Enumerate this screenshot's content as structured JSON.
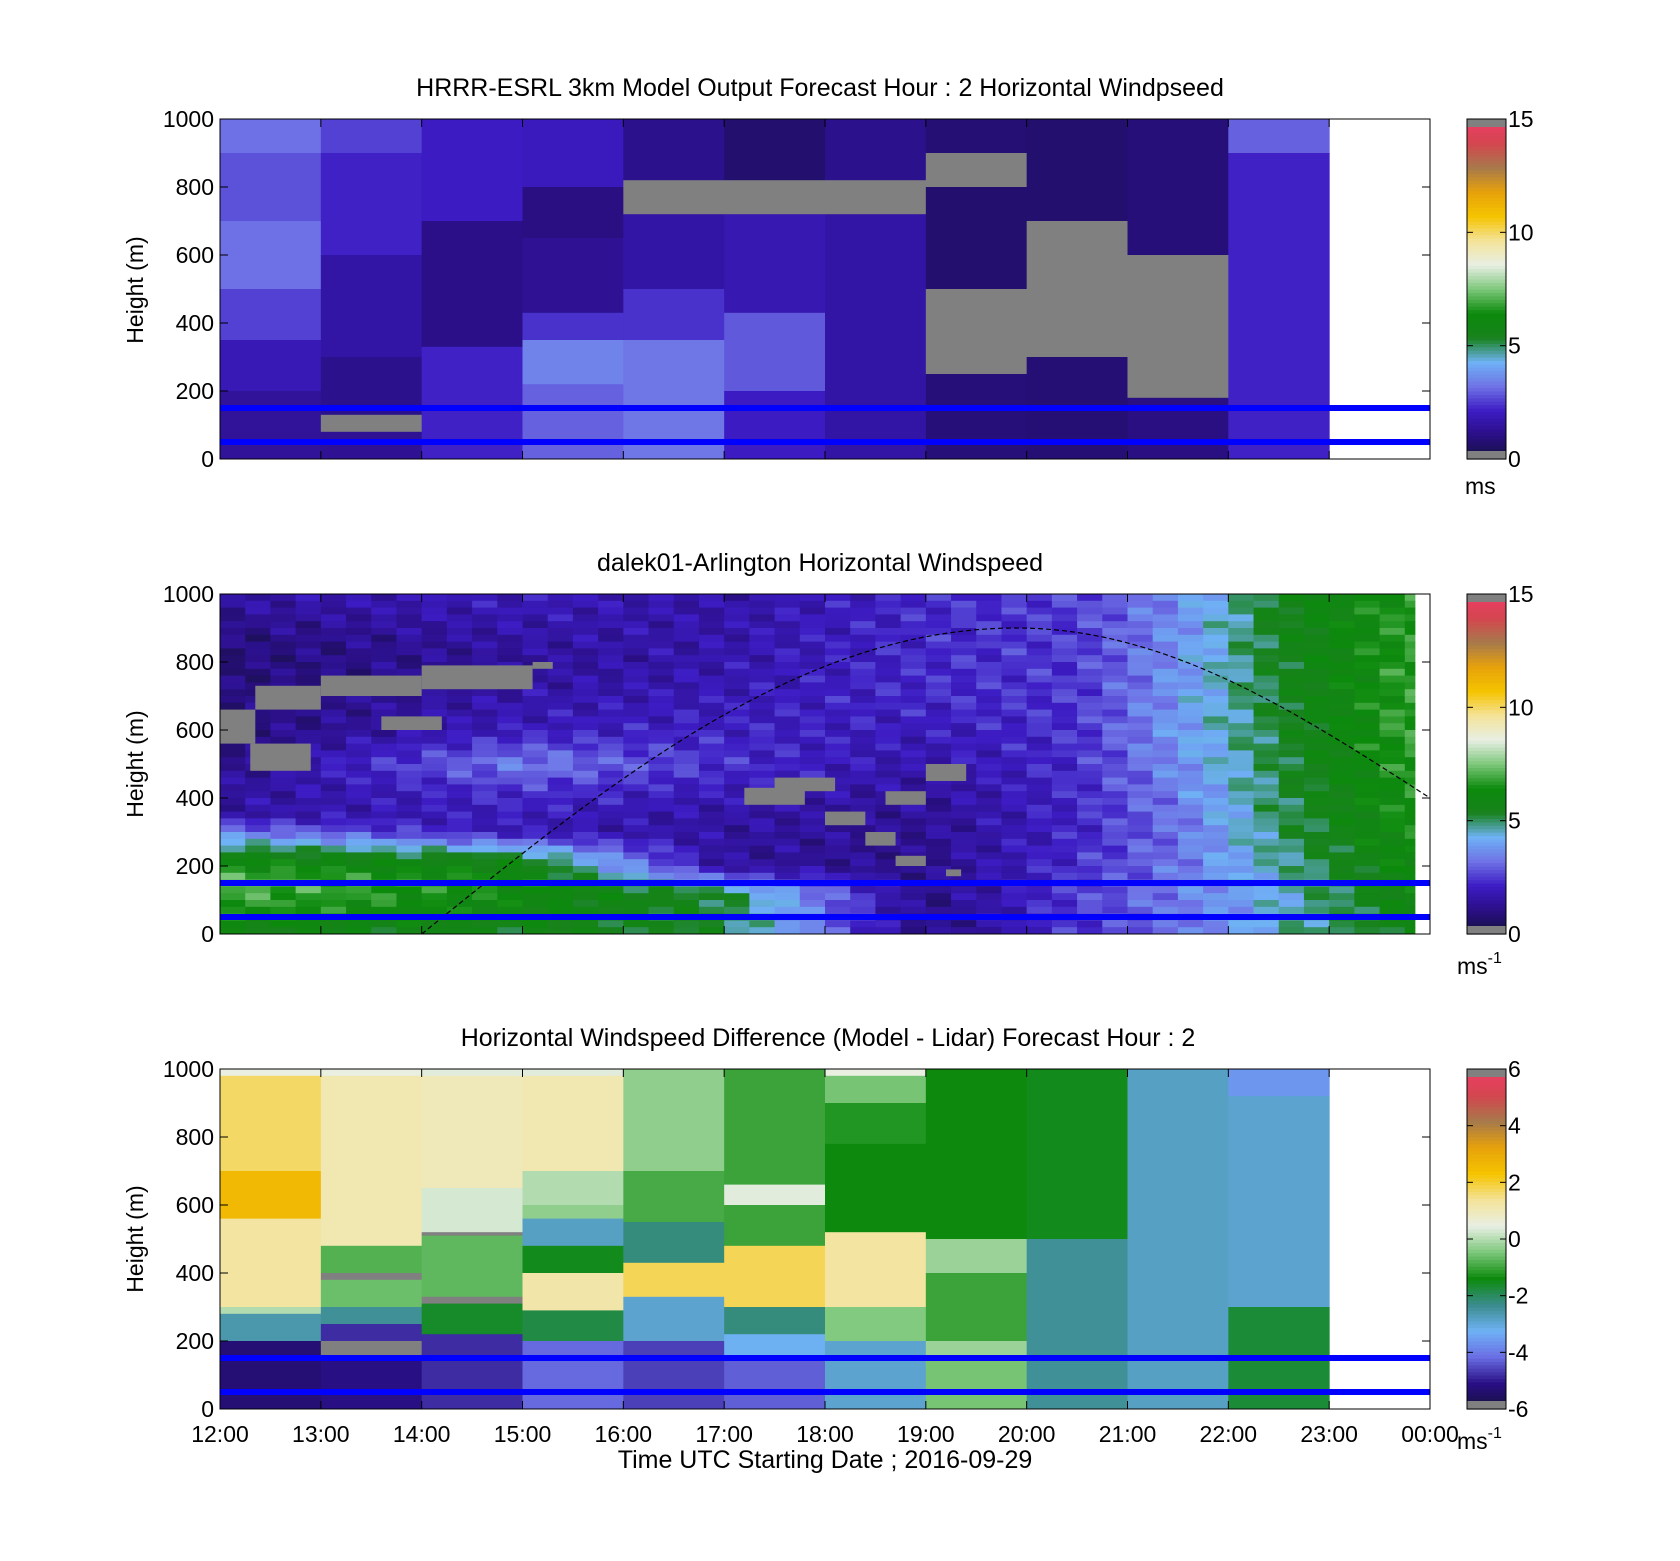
{
  "xaxis": {
    "ticks": [
      "12:00",
      "13:00",
      "14:00",
      "15:00",
      "16:00",
      "17:00",
      "18:00",
      "19:00",
      "20:00",
      "21:00",
      "22:00",
      "23:00",
      "00:00"
    ],
    "label": "Time UTC  Starting Date ; 2016-09-29"
  },
  "colors": {
    "missing": "#808080",
    "reference_lines": "#0000ff",
    "speed_scale": [
      "#15103d",
      "#2a0f86",
      "#3d1cc4",
      "#6f72e6",
      "#6fb2f5",
      "#18821c",
      "#0c8a0c",
      "#7cc77a",
      "#e8efe4",
      "#f4e39a",
      "#f5c400",
      "#e7a20b",
      "#a77a4b",
      "#d3464f",
      "#ef3d67"
    ],
    "diff_scale": [
      "#15103d",
      "#2a0f86",
      "#6a6ee4",
      "#6fb2f5",
      "#3a8c8c",
      "#0c8a0c",
      "#7cc77a",
      "#e8efe4",
      "#f4e39a",
      "#f5c400",
      "#e7a20b",
      "#a77a4b",
      "#d3464f",
      "#ef3d67"
    ]
  },
  "chart_data": [
    {
      "type": "heatmap",
      "title": "HRRR-ESRL 3km Model Output   Forecast Hour : 2 Horizontal Windpseed",
      "ylabel": "Height (m)",
      "ylim": [
        0,
        1000
      ],
      "yticks": [
        "0",
        "200",
        "400",
        "600",
        "800",
        "1000"
      ],
      "x_hours": [
        12,
        13,
        14,
        15,
        16,
        17,
        18,
        19,
        20,
        21,
        22,
        23
      ],
      "reference_lines_m": [
        150,
        50
      ],
      "colorbar": {
        "ticks": [
          "0",
          "5",
          "10",
          "15"
        ],
        "range": [
          0,
          15
        ],
        "unit": "ms"
      },
      "columns": [
        [
          [
            1000,
            900,
            3.2
          ],
          [
            900,
            700,
            2.8
          ],
          [
            700,
            500,
            3.2
          ],
          [
            500,
            350,
            2.6
          ],
          [
            350,
            200,
            1.9
          ],
          [
            200,
            0,
            1.4
          ]
        ],
        [
          [
            1000,
            900,
            2.6
          ],
          [
            900,
            600,
            2.2
          ],
          [
            600,
            300,
            1.6
          ],
          [
            300,
            130,
            1.2
          ],
          [
            130,
            80,
            "missing"
          ],
          [
            80,
            0,
            1.3
          ]
        ],
        [
          [
            1000,
            700,
            2.1
          ],
          [
            700,
            330,
            1.1
          ],
          [
            330,
            0,
            2.2
          ]
        ],
        [
          [
            1000,
            800,
            2.0
          ],
          [
            800,
            650,
            1.0
          ],
          [
            650,
            430,
            1.3
          ],
          [
            430,
            350,
            2.4
          ],
          [
            350,
            220,
            3.5
          ],
          [
            220,
            0,
            3.0
          ]
        ],
        [
          [
            1000,
            820,
            1.2
          ],
          [
            820,
            720,
            "missing"
          ],
          [
            720,
            500,
            1.6
          ],
          [
            500,
            350,
            2.4
          ],
          [
            350,
            0,
            3.3
          ]
        ],
        [
          [
            1000,
            820,
            0.7
          ],
          [
            820,
            720,
            "missing"
          ],
          [
            720,
            430,
            1.8
          ],
          [
            430,
            200,
            2.9
          ],
          [
            200,
            0,
            2.1
          ]
        ],
        [
          [
            1000,
            820,
            1.2
          ],
          [
            820,
            720,
            "missing"
          ],
          [
            720,
            0,
            1.6
          ]
        ],
        [
          [
            1000,
            900,
            0.8
          ],
          [
            900,
            800,
            "missing"
          ],
          [
            800,
            500,
            0.7
          ],
          [
            500,
            250,
            "missing"
          ],
          [
            250,
            0,
            0.9
          ]
        ],
        [
          [
            1000,
            700,
            0.7
          ],
          [
            700,
            300,
            "missing"
          ],
          [
            300,
            0,
            0.8
          ]
        ],
        [
          [
            1000,
            600,
            0.9
          ],
          [
            600,
            180,
            "missing"
          ],
          [
            180,
            0,
            1.0
          ]
        ],
        [
          [
            1000,
            900,
            3.0
          ],
          [
            900,
            0,
            2.2
          ]
        ]
      ]
    },
    {
      "type": "heatmap",
      "title": "dalek01-Arlington  Horizontal Windspeed",
      "ylabel": "Height (m)",
      "ylim": [
        0,
        1000
      ],
      "yticks": [
        "0",
        "200",
        "400",
        "600",
        "800",
        "1000"
      ],
      "x_hours": [
        12,
        13,
        14,
        15,
        16,
        17,
        18,
        19,
        20,
        21,
        22,
        23
      ],
      "reference_lines_m": [
        150,
        50
      ],
      "colorbar": {
        "ticks": [
          "0",
          "5",
          "10",
          "15"
        ],
        "range": [
          0,
          15
        ],
        "unit": "ms",
        "unit_superscript": "-1"
      },
      "time_start": 12.0,
      "time_end": 23.85,
      "column_hours": 0.25,
      "speed_profiles": [
        [
          [
            12.0,
            1000,
            1.6
          ],
          [
            12.0,
            860,
            0.9
          ],
          [
            12.0,
            600,
            0.9
          ],
          [
            12.0,
            350,
            1.6
          ],
          [
            12.0,
            240,
            5.6
          ],
          [
            12.0,
            150,
            7.3
          ],
          [
            12.0,
            50,
            6.4
          ],
          [
            12.0,
            0,
            5.6
          ]
        ],
        [
          [
            15.0,
            1000,
            2.0
          ],
          [
            15.0,
            800,
            1.4
          ],
          [
            15.0,
            600,
            2.0
          ],
          [
            15.0,
            500,
            3.5
          ],
          [
            15.0,
            420,
            2.4
          ],
          [
            15.0,
            300,
            1.8
          ],
          [
            15.0,
            220,
            5.6
          ],
          [
            15.0,
            150,
            6.4
          ],
          [
            15.0,
            0,
            5.6
          ]
        ],
        [
          [
            17.0,
            1000,
            1.6
          ],
          [
            17.0,
            750,
            1.8
          ],
          [
            17.0,
            500,
            2.4
          ],
          [
            17.0,
            350,
            1.6
          ],
          [
            17.0,
            200,
            1.4
          ],
          [
            17.0,
            120,
            5.3
          ],
          [
            17.0,
            0,
            5.3
          ]
        ],
        [
          [
            19.0,
            1000,
            2.3
          ],
          [
            19.0,
            700,
            2.3
          ],
          [
            19.0,
            400,
            1.4
          ],
          [
            19.0,
            200,
            1.2
          ],
          [
            19.0,
            50,
            1.0
          ],
          [
            19.0,
            0,
            1.0
          ]
        ],
        [
          [
            20.5,
            1000,
            2.6
          ],
          [
            20.5,
            600,
            2.4
          ],
          [
            20.5,
            300,
            2.2
          ],
          [
            20.5,
            100,
            2.6
          ],
          [
            20.5,
            0,
            2.4
          ]
        ],
        [
          [
            21.5,
            1000,
            3.6
          ],
          [
            21.5,
            600,
            3.9
          ],
          [
            21.5,
            300,
            3.2
          ],
          [
            21.5,
            100,
            3.4
          ],
          [
            21.5,
            0,
            3.1
          ]
        ],
        [
          [
            22.5,
            1000,
            5.6
          ],
          [
            22.5,
            600,
            5.3
          ],
          [
            22.5,
            300,
            5.0
          ],
          [
            22.5,
            100,
            4.3
          ],
          [
            22.5,
            0,
            4.6
          ]
        ],
        [
          [
            23.75,
            1000,
            6.6
          ],
          [
            23.75,
            600,
            6.8
          ],
          [
            23.75,
            300,
            6.4
          ],
          [
            23.75,
            100,
            6.0
          ],
          [
            23.75,
            0,
            5.6
          ]
        ]
      ],
      "missing_patches": [
        [
          12.0,
          12.35,
          560,
          660
        ],
        [
          12.35,
          13.0,
          660,
          730
        ],
        [
          13.0,
          14.0,
          700,
          760
        ],
        [
          14.0,
          15.1,
          720,
          790
        ],
        [
          12.3,
          12.9,
          480,
          560
        ],
        [
          13.6,
          14.2,
          600,
          640
        ],
        [
          15.1,
          15.3,
          780,
          800
        ],
        [
          17.2,
          17.8,
          380,
          430
        ],
        [
          17.5,
          18.1,
          420,
          460
        ],
        [
          18.0,
          18.4,
          320,
          360
        ],
        [
          18.4,
          18.7,
          260,
          300
        ],
        [
          18.6,
          19.0,
          380,
          420
        ],
        [
          19.0,
          19.4,
          450,
          500
        ],
        [
          18.7,
          19.0,
          200,
          230
        ],
        [
          19.2,
          19.35,
          170,
          190
        ]
      ],
      "sun_curve": {
        "start_hour": 14.0,
        "peak_hour": 19.9,
        "peak_height_m": 900,
        "end_hour": 24.0,
        "end_height_m": 400
      }
    },
    {
      "type": "heatmap",
      "title": "Horizontal Windspeed Difference (Model - Lidar) Forecast Hour : 2",
      "ylabel": "Height (m)",
      "ylim": [
        0,
        1000
      ],
      "yticks": [
        "0",
        "200",
        "400",
        "600",
        "800",
        "1000"
      ],
      "x_hours": [
        12,
        13,
        14,
        15,
        16,
        17,
        18,
        19,
        20,
        21,
        22,
        23
      ],
      "reference_lines_m": [
        150,
        50
      ],
      "colorbar": {
        "ticks": [
          "-6",
          "-4",
          "-2",
          "0",
          "2",
          "4",
          "6"
        ],
        "range": [
          -6,
          6
        ],
        "unit": "ms",
        "unit_superscript": "-1"
      },
      "columns": [
        [
          [
            1000,
            980,
            0.5
          ],
          [
            980,
            700,
            1.7
          ],
          [
            700,
            560,
            2.6
          ],
          [
            560,
            300,
            1.3
          ],
          [
            300,
            280,
            0.0
          ],
          [
            280,
            200,
            -2.6
          ],
          [
            200,
            0,
            -5.3
          ]
        ],
        [
          [
            1000,
            980,
            0.5
          ],
          [
            980,
            480,
            1.1
          ],
          [
            480,
            400,
            -0.8
          ],
          [
            400,
            380,
            "missing"
          ],
          [
            380,
            300,
            -0.6
          ],
          [
            300,
            250,
            -2.4
          ],
          [
            250,
            200,
            -4.8
          ],
          [
            200,
            150,
            "missing"
          ],
          [
            150,
            0,
            -5.1
          ]
        ],
        [
          [
            1000,
            980,
            0.4
          ],
          [
            980,
            650,
            1.0
          ],
          [
            650,
            520,
            0.3
          ],
          [
            520,
            510,
            "missing"
          ],
          [
            510,
            330,
            -0.7
          ],
          [
            330,
            310,
            "missing"
          ],
          [
            310,
            220,
            -1.6
          ],
          [
            220,
            0,
            -4.8
          ]
        ],
        [
          [
            1000,
            980,
            0.4
          ],
          [
            980,
            700,
            1.1
          ],
          [
            700,
            600,
            0.0
          ],
          [
            600,
            560,
            -0.3
          ],
          [
            560,
            480,
            -2.8
          ],
          [
            480,
            400,
            -1.5
          ],
          [
            400,
            290,
            1.2
          ],
          [
            290,
            200,
            -1.8
          ],
          [
            200,
            0,
            -4.2
          ]
        ],
        [
          [
            1000,
            700,
            -0.3
          ],
          [
            700,
            550,
            -0.9
          ],
          [
            550,
            430,
            -2.2
          ],
          [
            430,
            330,
            1.8
          ],
          [
            330,
            200,
            -2.9
          ],
          [
            200,
            0,
            -4.6
          ]
        ],
        [
          [
            1000,
            660,
            -1.0
          ],
          [
            660,
            600,
            0.4
          ],
          [
            600,
            480,
            -1.0
          ],
          [
            480,
            300,
            1.8
          ],
          [
            300,
            220,
            -2.2
          ],
          [
            220,
            150,
            -3.2
          ],
          [
            150,
            0,
            -4.3
          ]
        ],
        [
          [
            1000,
            980,
            0.5
          ],
          [
            980,
            900,
            -0.5
          ],
          [
            900,
            780,
            -1.2
          ],
          [
            780,
            520,
            -1.4
          ],
          [
            520,
            300,
            1.3
          ],
          [
            300,
            200,
            -0.4
          ],
          [
            200,
            0,
            -2.9
          ]
        ],
        [
          [
            1000,
            500,
            -1.4
          ],
          [
            500,
            400,
            -0.2
          ],
          [
            400,
            200,
            -1.0
          ],
          [
            200,
            150,
            -0.2
          ],
          [
            150,
            0,
            -0.5
          ]
        ],
        [
          [
            1000,
            500,
            -1.5
          ],
          [
            500,
            0,
            -2.4
          ]
        ],
        [
          [
            1000,
            0,
            -2.8
          ]
        ],
        [
          [
            1000,
            920,
            -3.6
          ],
          [
            920,
            300,
            -2.9
          ],
          [
            300,
            0,
            -1.7
          ]
        ]
      ]
    }
  ]
}
